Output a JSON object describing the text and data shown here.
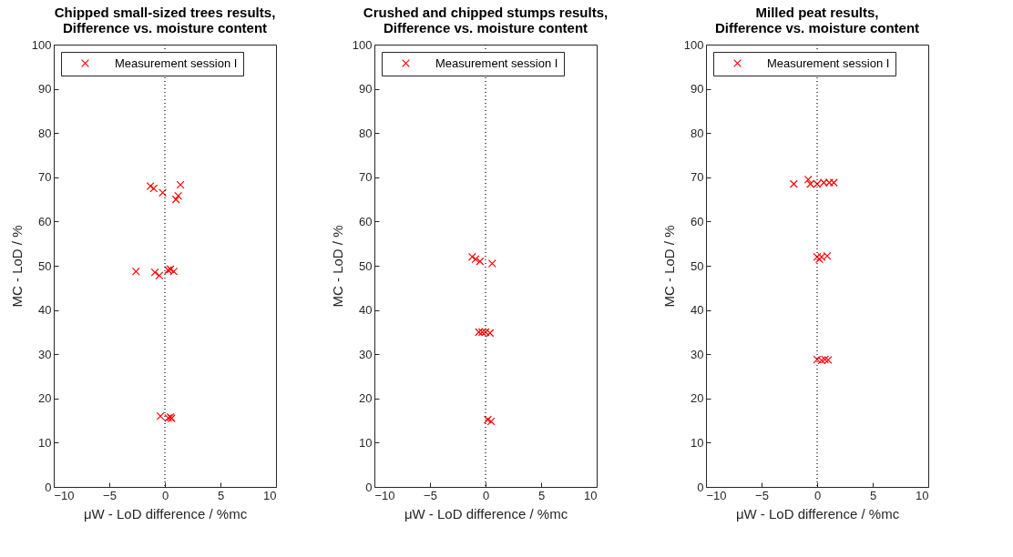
{
  "chart_data": [
    {
      "type": "scatter",
      "title": "Chipped small-sized trees results,\nDifference vs. moisture content",
      "xlabel": "μW - LoD difference / %mc",
      "ylabel": "MC - LoD / %",
      "xlim": [
        -10,
        10
      ],
      "xticks": [
        -10,
        -5,
        0,
        5,
        10
      ],
      "ylim": [
        0,
        100
      ],
      "yticks": [
        0,
        10,
        20,
        30,
        40,
        50,
        60,
        70,
        80,
        90,
        100
      ],
      "grid": false,
      "legend": "top left",
      "marker": "cross",
      "ref_lines": [
        {
          "axis": "x",
          "value": 0,
          "color": "#000000",
          "line_style": "dotted"
        }
      ],
      "series": [
        {
          "name": "Measurement session I",
          "color": "#ff0000",
          "x": [
            -1.3,
            -1.0,
            -0.2,
            1.4,
            1.0,
            1.2,
            -2.6,
            -0.9,
            -0.5,
            0.3,
            0.5,
            0.8,
            -0.4,
            0.3,
            0.5,
            0.6
          ],
          "values": [
            68,
            67.5,
            66.5,
            68.3,
            65,
            65.8,
            48.7,
            48.5,
            47.8,
            49,
            49.2,
            48.7,
            16,
            15.6,
            15.8,
            15.5
          ]
        }
      ]
    },
    {
      "type": "scatter",
      "title": "Crushed and chipped stumps results,\nDifference vs. moisture content",
      "xlabel": "μW - LoD difference / %mc",
      "ylabel": "MC - LoD / %",
      "xlim": [
        -10,
        10
      ],
      "xticks": [
        -10,
        -5,
        0,
        5,
        10
      ],
      "ylim": [
        0,
        100
      ],
      "yticks": [
        0,
        10,
        20,
        30,
        40,
        50,
        60,
        70,
        80,
        90,
        100
      ],
      "grid": false,
      "legend": "top left",
      "marker": "cross",
      "ref_lines": [
        {
          "axis": "x",
          "value": 0,
          "color": "#000000",
          "line_style": "dotted"
        }
      ],
      "series": [
        {
          "name": "Measurement session I",
          "color": "#ff0000",
          "x": [
            -1.2,
            -0.9,
            -0.5,
            0.6,
            -0.6,
            -0.3,
            0,
            0.4,
            0.2,
            0.5
          ],
          "values": [
            52,
            51.5,
            51,
            50.5,
            35,
            35,
            35,
            34.8,
            15.2,
            14.8
          ]
        }
      ]
    },
    {
      "type": "scatter",
      "title": "Milled peat results,\nDifference vs. moisture content",
      "xlabel": "μW - LoD difference / %mc",
      "ylabel": "MC - LoD / %",
      "xlim": [
        -10,
        10
      ],
      "xticks": [
        -10,
        -5,
        0,
        5,
        10
      ],
      "ylim": [
        0,
        100
      ],
      "yticks": [
        0,
        10,
        20,
        30,
        40,
        50,
        60,
        70,
        80,
        90,
        100
      ],
      "grid": false,
      "legend": "top left",
      "marker": "cross",
      "ref_lines": [
        {
          "axis": "x",
          "value": 0,
          "color": "#000000",
          "line_style": "dotted"
        }
      ],
      "series": [
        {
          "name": "Measurement session I",
          "color": "#ff0000",
          "x": [
            -2.1,
            -0.8,
            -0.6,
            0,
            0.6,
            1.1,
            1.5,
            0,
            0.2,
            0.4,
            0.9,
            0,
            0.4,
            0.7,
            1.0
          ],
          "values": [
            68.5,
            69.5,
            68.5,
            68.5,
            68.8,
            68.8,
            68.8,
            52,
            51.5,
            52,
            52.2,
            28.8,
            28.6,
            28.8,
            28.7
          ]
        }
      ]
    }
  ]
}
